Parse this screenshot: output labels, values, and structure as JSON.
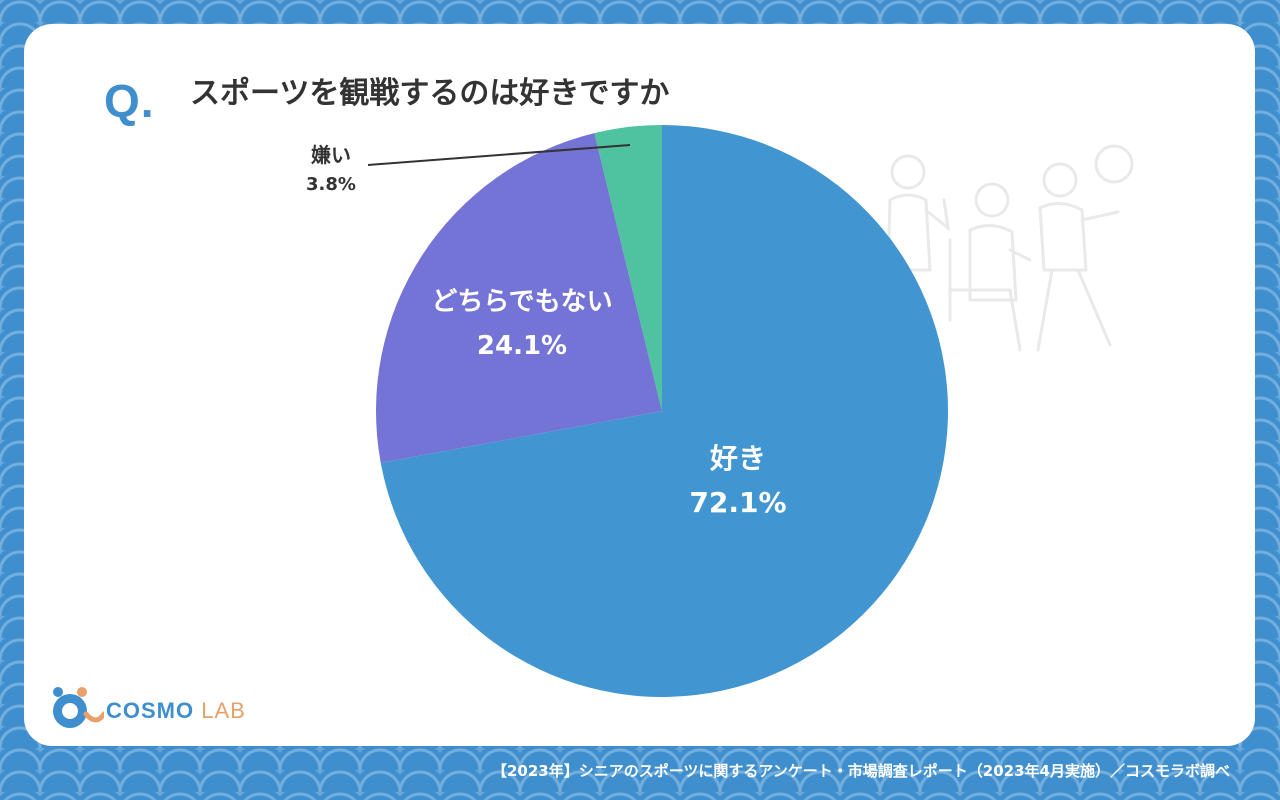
{
  "question_mark": "Q.",
  "title": "スポーツを観戦するのは好きですか",
  "chart_data": {
    "type": "pie",
    "title": "スポーツを観戦するのは好きですか",
    "slices": [
      {
        "label": "好き",
        "value": 72.1,
        "value_label": "72.1%",
        "color": "#4196d2"
      },
      {
        "label": "どちらでもない",
        "value": 24.1,
        "value_label": "24.1%",
        "color": "#7473d6"
      },
      {
        "label": "嫌い",
        "value": 3.8,
        "value_label": "3.8%",
        "color": "#4fc2a0"
      }
    ]
  },
  "logo": {
    "main": "COSMO",
    "sub": "LAB"
  },
  "footer": "【2023年】シニアのスポーツに関するアンケート・市場調査レポート（2023年4月実施）／コスモラボ調べ",
  "decor": {
    "illustration_icon": "seniors-watching-sports-icon"
  }
}
